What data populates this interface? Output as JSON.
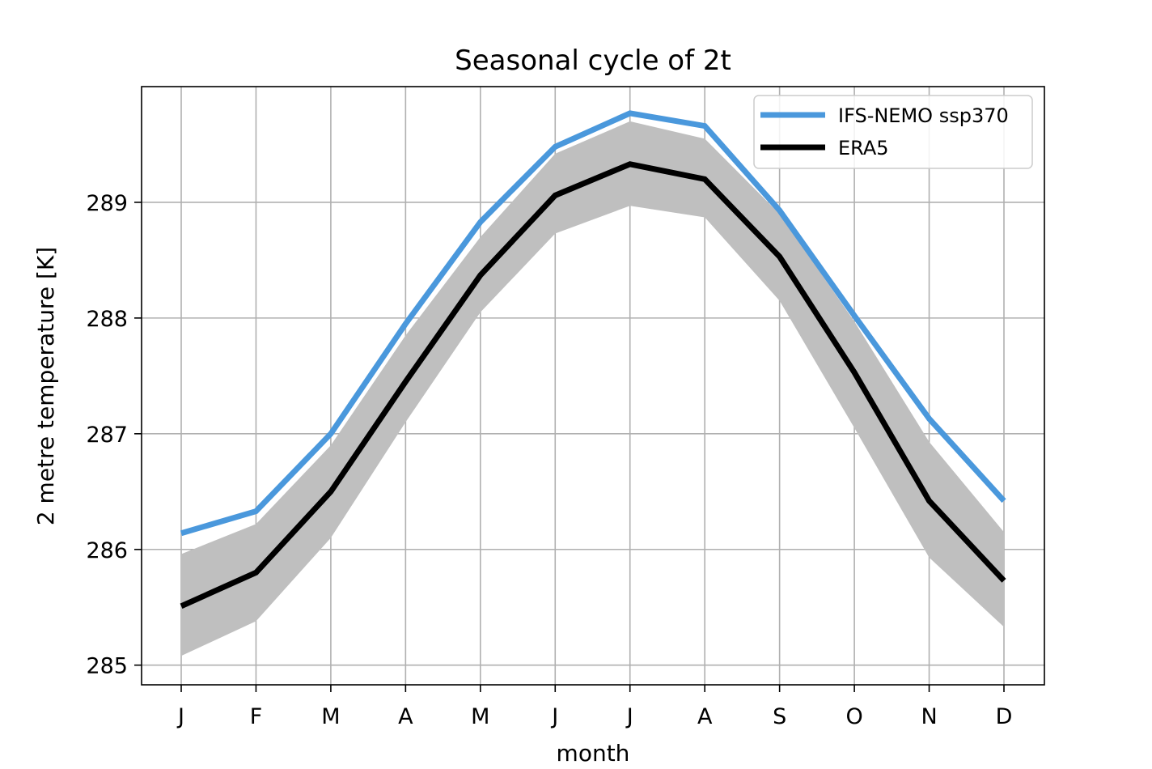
{
  "chart_data": {
    "type": "line",
    "title": "Seasonal cycle of 2t",
    "xlabel": "month",
    "ylabel": "2 metre temperature [K]",
    "categories": [
      "J",
      "F",
      "M",
      "A",
      "M",
      "J",
      "J",
      "A",
      "S",
      "O",
      "N",
      "D"
    ],
    "ylim": [
      284.83,
      290.0
    ],
    "yticks": [
      285,
      286,
      287,
      288,
      289
    ],
    "grid": true,
    "legend_position": "top-right",
    "series": [
      {
        "name": "IFS-NEMO ssp370",
        "color": "#4a98dc",
        "values": [
          286.14,
          286.33,
          287.0,
          287.95,
          288.83,
          289.48,
          289.77,
          289.66,
          288.93,
          288.02,
          287.13,
          286.42
        ]
      },
      {
        "name": "ERA5",
        "color": "#000000",
        "values": [
          285.51,
          285.8,
          286.5,
          287.45,
          288.37,
          289.06,
          289.33,
          289.2,
          288.53,
          287.53,
          286.42,
          285.73
        ]
      }
    ],
    "band": {
      "color": "#bfbfbf",
      "lower": [
        285.08,
        285.38,
        286.1,
        287.1,
        288.05,
        288.73,
        288.97,
        288.87,
        288.15,
        287.05,
        285.93,
        285.33
      ],
      "upper": [
        285.96,
        286.22,
        286.9,
        287.85,
        288.7,
        289.42,
        289.7,
        289.55,
        288.9,
        287.97,
        286.93,
        286.15
      ]
    }
  }
}
